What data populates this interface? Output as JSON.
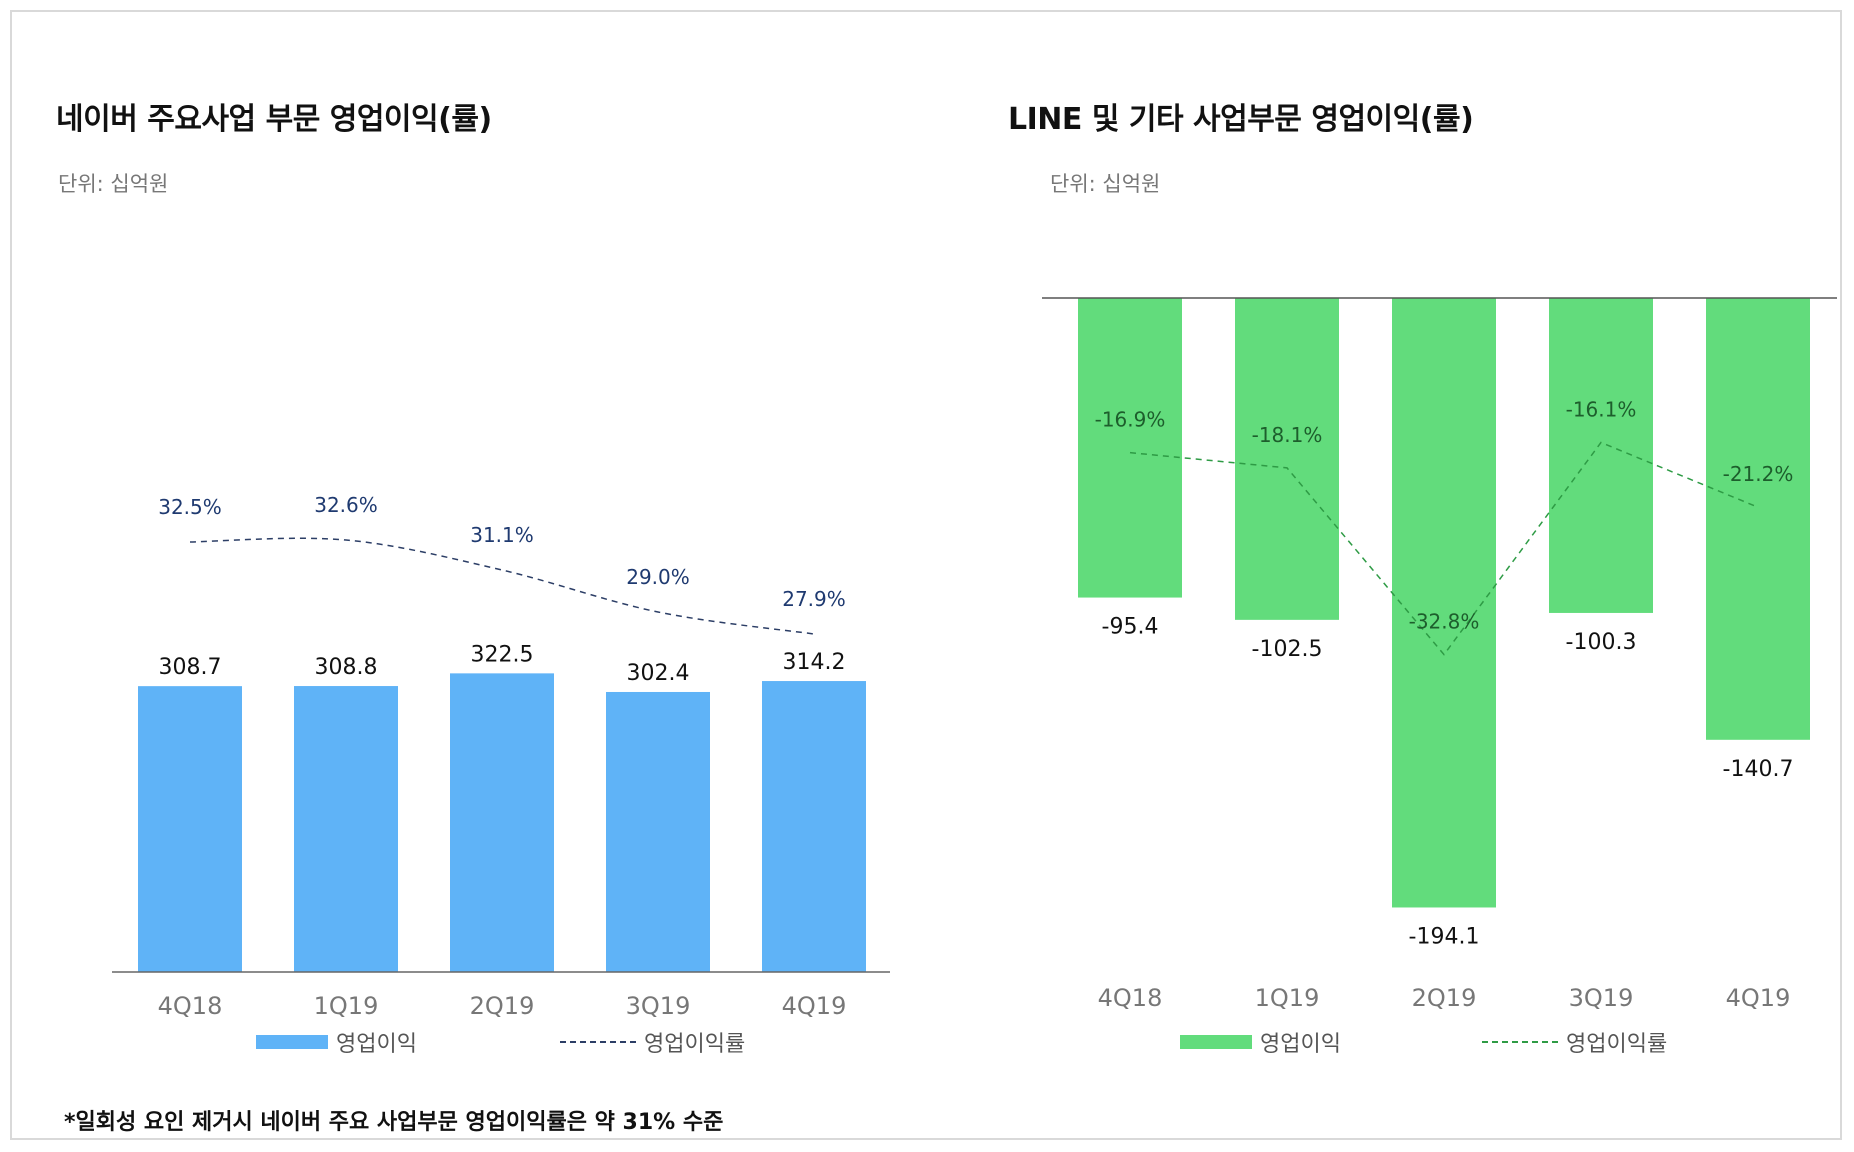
{
  "footnote": "*일회성 요인 제거시 네이버 주요 사업부문 영업이익률은 약 31% 수준",
  "chart_data": [
    {
      "type": "bar",
      "title": "네이버 주요사업 부문 영업이익(률)",
      "subtitle": "단위: 십억원",
      "categories": [
        "4Q18",
        "1Q19",
        "2Q19",
        "3Q19",
        "4Q19"
      ],
      "series": [
        {
          "name": "영업이익",
          "kind": "bar",
          "color": "#5fb3f7",
          "values": [
            308.7,
            308.8,
            322.5,
            302.4,
            314.2
          ],
          "labels": [
            "308.7",
            "308.8",
            "322.5",
            "302.4",
            "314.2"
          ]
        },
        {
          "name": "영업이익률",
          "kind": "line",
          "color": "#2c3e66",
          "values": [
            32.5,
            32.6,
            31.1,
            29.0,
            27.9
          ],
          "labels": [
            "32.5%",
            "32.6%",
            "31.1%",
            "29.0%",
            "27.9%"
          ]
        }
      ],
      "ylim": [
        0,
        380
      ],
      "legend_placement": "bottom",
      "grid": false
    },
    {
      "type": "bar",
      "title": "LINE 및 기타 사업부문 영업이익(률)",
      "subtitle": "단위: 십억원",
      "categories": [
        "4Q18",
        "1Q19",
        "2Q19",
        "3Q19",
        "4Q19"
      ],
      "series": [
        {
          "name": "영업이익",
          "kind": "bar",
          "color": "#62dc7c",
          "values": [
            -95.4,
            -102.5,
            -194.1,
            -100.3,
            -140.7
          ],
          "labels": [
            "-95.4",
            "-102.5",
            "-194.1",
            "-100.3",
            "-140.7"
          ]
        },
        {
          "name": "영업이익률",
          "kind": "line",
          "color": "#2e9b45",
          "values": [
            -16.9,
            -18.1,
            -32.8,
            -16.1,
            -21.2
          ],
          "labels": [
            "-16.9%",
            "-18.1%",
            "-32.8%",
            "-16.1%",
            "-21.2%"
          ]
        }
      ],
      "ylim": [
        -200,
        0
      ],
      "legend_placement": "bottom",
      "grid": false
    }
  ]
}
